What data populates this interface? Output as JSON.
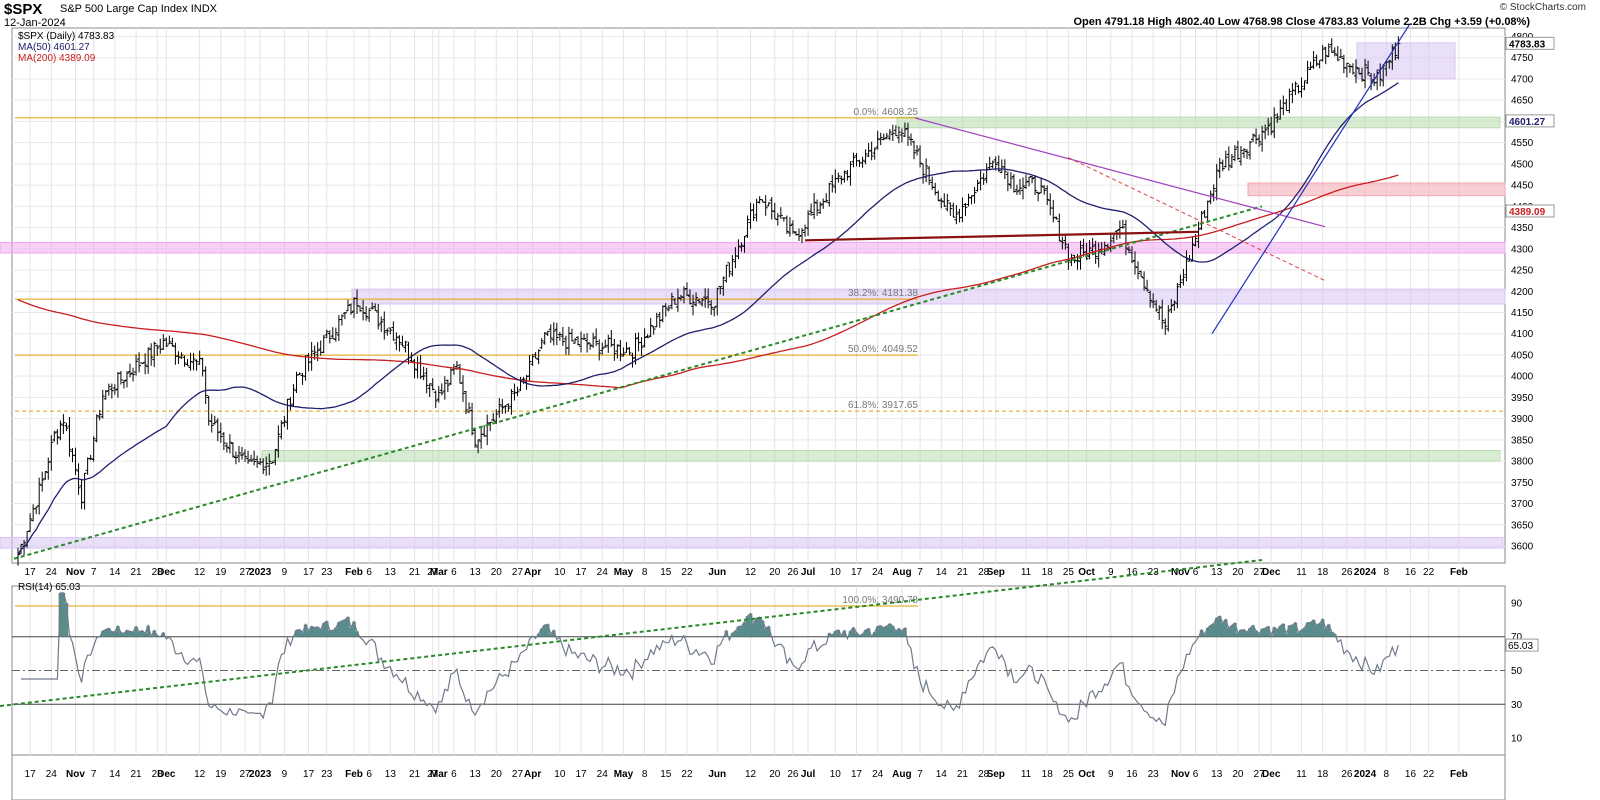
{
  "header": {
    "symbol": "$SPX",
    "name": "S&P 500 Large Cap Index",
    "exchange": "INDX",
    "date": "12-Jan-2024",
    "stats": "Open 4791.18 High 4802.40 Low 4768.98 Close 4783.83 Volume 2.2B Chg +3.59 (+0.08%)",
    "copyright": "© StockCharts.com"
  },
  "legend": {
    "price": "$SPX (Daily) 4783.83",
    "ma50": "MA(50) 4601.27",
    "ma200": "MA(200) 4389.09",
    "rsi": "RSI(14) 65.03"
  },
  "colors": {
    "price": "#000000",
    "ma50": "#20206e",
    "ma200": "#c81e1e",
    "fib": "#e0a000",
    "trend_green": "#2a8a2a",
    "trend_purple": "#a040c0",
    "trend_blue": "#2030c0",
    "neckline": "#8b1010",
    "zone_green": "#b8dcb0",
    "zone_pink": "#f0a8f0",
    "zone_purple": "#d8c4f4",
    "zone_red": "#f4a8b0",
    "rsi": "#707a8c",
    "rsi_fill": "#5a8c8c"
  },
  "chart_data": [
    {
      "type": "ohlc",
      "title": "$SPX (Daily)",
      "ylim": [
        3560,
        4820
      ],
      "y_ticks": [
        3600,
        3650,
        3700,
        3750,
        3800,
        3850,
        3900,
        3950,
        4000,
        4050,
        4100,
        4150,
        4200,
        4250,
        4300,
        4350,
        4400,
        4450,
        4500,
        4550,
        4600,
        4650,
        4700,
        4750,
        4800
      ],
      "last_close": 4783.83,
      "ma50_last": 4601.27,
      "ma200_last": 4389.09,
      "x_ticks": [
        "17",
        "24",
        "Nov",
        "7",
        "14",
        "21",
        "28",
        "Dec",
        "12",
        "19",
        "27",
        "2023",
        "9",
        "17",
        "23",
        "Feb",
        "6",
        "13",
        "21",
        "27",
        "Mar",
        "6",
        "13",
        "20",
        "27",
        "Apr",
        "10",
        "17",
        "24",
        "May",
        "8",
        "15",
        "22",
        "Jun",
        "12",
        "20",
        "26",
        "Jul",
        "10",
        "17",
        "24",
        "Aug",
        "7",
        "14",
        "21",
        "28",
        "Sep",
        "11",
        "18",
        "25",
        "Oct",
        "9",
        "16",
        "23",
        "Nov",
        "6",
        "13",
        "20",
        "27",
        "Dec",
        "11",
        "18",
        "26",
        "2024",
        "8",
        "16",
        "22",
        "Feb"
      ],
      "price_path": [
        [
          "2022-10-13",
          3580
        ],
        [
          "2022-10-21",
          3752
        ],
        [
          "2022-10-25",
          3860
        ],
        [
          "2022-10-28",
          3901
        ],
        [
          "2022-11-03",
          3720
        ],
        [
          "2022-11-10",
          3956
        ],
        [
          "2022-11-30",
          4080
        ],
        [
          "2022-12-13",
          4019
        ],
        [
          "2022-12-15",
          3895
        ],
        [
          "2022-12-28",
          3783
        ],
        [
          "2023-01-05",
          3808
        ],
        [
          "2023-01-13",
          3999
        ],
        [
          "2023-02-02",
          4179
        ],
        [
          "2023-02-16",
          4090
        ],
        [
          "2023-03-01",
          3951
        ],
        [
          "2023-03-07",
          4020
        ],
        [
          "2023-03-13",
          3855
        ],
        [
          "2023-03-28",
          3971
        ],
        [
          "2023-04-05",
          4090
        ],
        [
          "2023-05-04",
          4061
        ],
        [
          "2023-05-19",
          4191
        ],
        [
          "2023-05-31",
          4180
        ],
        [
          "2023-06-15",
          4425
        ],
        [
          "2023-06-26",
          4328
        ],
        [
          "2023-07-12",
          4472
        ],
        [
          "2023-07-31",
          4589
        ],
        [
          "2023-08-18",
          4370
        ],
        [
          "2023-09-01",
          4515
        ],
        [
          "2023-09-07",
          4451
        ],
        [
          "2023-09-15",
          4450
        ],
        [
          "2023-09-26",
          4274
        ],
        [
          "2023-10-06",
          4308
        ],
        [
          "2023-10-12",
          4349
        ],
        [
          "2023-10-27",
          4117
        ],
        [
          "2023-11-14",
          4495
        ],
        [
          "2023-12-01",
          4594
        ],
        [
          "2023-12-19",
          4768
        ],
        [
          "2024-01-05",
          4697
        ],
        [
          "2024-01-12",
          4783.83
        ]
      ],
      "annotations": {
        "fib_levels": [
          {
            "label": "0.0%: 4608.25",
            "value": 4608.25
          },
          {
            "label": "38.2%: 4181.38",
            "value": 4181.38
          },
          {
            "label": "50.0%: 4049.52",
            "value": 4049.52
          },
          {
            "label": "61.8%: 3917.65",
            "value": 3917.65
          },
          {
            "label": "100.0%: 3490.78",
            "value": 3490.78
          }
        ],
        "zones": [
          {
            "color": "zone_green",
            "from": 4585,
            "to": 4610
          },
          {
            "color": "zone_green",
            "from": 3800,
            "to": 3825
          },
          {
            "color": "zone_pink",
            "from": 4290,
            "to": 4315
          },
          {
            "color": "zone_red",
            "from": 4425,
            "to": 4455
          },
          {
            "color": "zone_purple",
            "from": 4170,
            "to": 4205
          },
          {
            "color": "zone_purple",
            "from": 3595,
            "to": 3620
          },
          {
            "color": "zone_purple",
            "from": 4700,
            "to": 4785
          }
        ]
      }
    },
    {
      "type": "line",
      "title": "RSI(14)",
      "ylim": [
        0,
        100
      ],
      "y_ticks": [
        10,
        30,
        50,
        70,
        90
      ],
      "last": 65.03,
      "overbought": 70,
      "oversold": 30,
      "midline": 50
    }
  ]
}
